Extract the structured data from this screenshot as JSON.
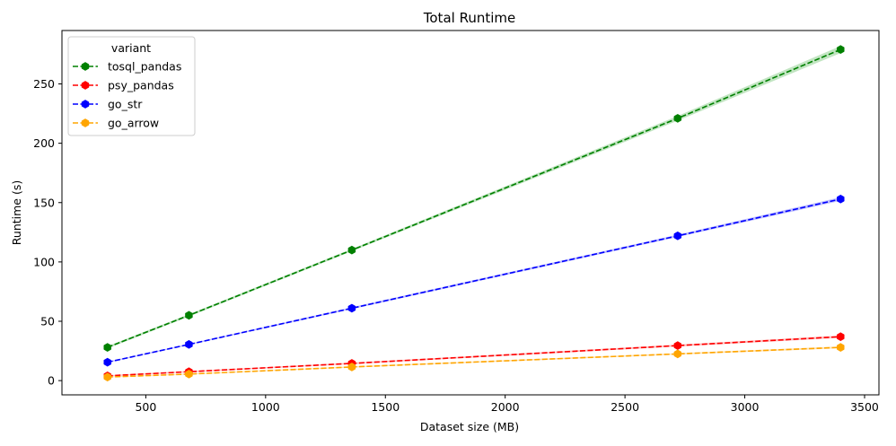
{
  "chart_data": {
    "type": "line",
    "title": "Total Runtime",
    "xlabel": "Dataset size (MB)",
    "ylabel": "Runtime (s)",
    "xlim": [
      150,
      3560
    ],
    "ylim": [
      -12,
      295
    ],
    "xticks": [
      500,
      1000,
      1500,
      2000,
      2500,
      3000,
      3500
    ],
    "yticks": [
      0,
      50,
      100,
      150,
      200,
      250
    ],
    "grid": false,
    "legend": {
      "title": "variant",
      "placement": "top-left"
    },
    "x": [
      340,
      680,
      1360,
      2720,
      3400
    ],
    "series": [
      {
        "name": "tosql_pandas",
        "color": "#008000",
        "band_color": "#b3dfb3",
        "values": [
          28,
          55,
          110,
          221,
          279
        ],
        "band": [
          1,
          1,
          1,
          2,
          3
        ]
      },
      {
        "name": "psy_pandas",
        "color": "#ff0000",
        "band_color": "#ffb0b0",
        "values": [
          4,
          7.5,
          14.5,
          29.5,
          37
        ],
        "band": [
          0.5,
          0.5,
          0.6,
          0.8,
          1
        ]
      },
      {
        "name": "go_str",
        "color": "#0000ff",
        "band_color": "#b0b0ff",
        "values": [
          15.5,
          30.5,
          61,
          122,
          153
        ],
        "band": [
          0.5,
          0.5,
          0.8,
          1,
          1.5
        ]
      },
      {
        "name": "go_arrow",
        "color": "#ffa500",
        "band_color": "#ffdca0",
        "values": [
          3,
          5.5,
          11.5,
          22.5,
          28
        ],
        "band": [
          0.3,
          0.4,
          0.5,
          0.6,
          0.8
        ]
      }
    ]
  }
}
